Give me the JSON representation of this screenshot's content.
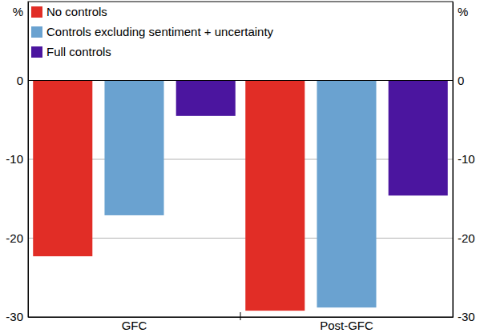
{
  "chart_data": {
    "type": "bar",
    "ylabel": "%",
    "categories": [
      "GFC",
      "Post-GFC"
    ],
    "series": [
      {
        "name": "No controls",
        "color": "#e12d26",
        "values": [
          -22.3,
          -29.2
        ]
      },
      {
        "name": "Controls excluding sentiment + uncertainty",
        "color": "#6aa2d0",
        "values": [
          -17.1,
          -28.8
        ]
      },
      {
        "name": "Full controls",
        "color": "#4b159f",
        "values": [
          -4.5,
          -14.6
        ]
      }
    ],
    "ylim": [
      -30,
      10
    ],
    "yticks": [
      -30,
      -20,
      -10,
      0
    ],
    "grid": true,
    "legend": "top-left"
  }
}
